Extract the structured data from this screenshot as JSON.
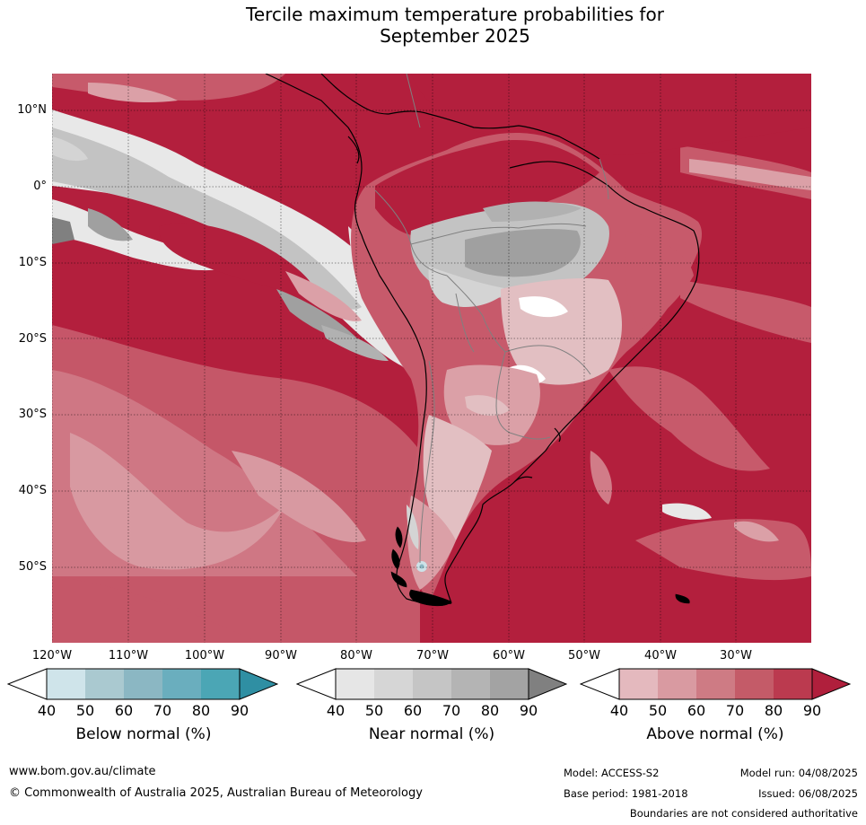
{
  "title": {
    "line1": "Tercile maximum temperature probabilities for",
    "line2": "September 2025"
  },
  "map": {
    "region": "South America",
    "lat_labels": [
      "10°N",
      "0°",
      "10°S",
      "20°S",
      "30°S",
      "40°S",
      "50°S"
    ],
    "lon_labels": [
      "120°W",
      "110°W",
      "100°W",
      "90°W",
      "80°W",
      "70°W",
      "60°W",
      "50°W",
      "40°W",
      "30°W"
    ],
    "colors": {
      "ocean_dominant": "#b31f3d",
      "above_90": "#b31f3d",
      "above_80": "#bd3b52",
      "above_70": "#c75a6b",
      "above_60": "#d17c88",
      "above_50": "#dba0a7",
      "above_40": "#e2bfc2",
      "near_40": "#e8e8e8",
      "near_50": "#d4d4d4",
      "near_60": "#c3c3c3",
      "near_70": "#b1b1b1",
      "near_80": "#a0a0a0",
      "near_90": "#808080",
      "below_50": "#cde2e8"
    }
  },
  "legends": [
    {
      "label": "Below normal (%)",
      "ticks": [
        "40",
        "50",
        "60",
        "70",
        "80",
        "90"
      ],
      "colors": [
        "#cfe4ea",
        "#aac9d0",
        "#8bb7c3",
        "#6aaebe",
        "#4ba6b5",
        "#2f8fa3"
      ]
    },
    {
      "label": "Near normal (%)",
      "ticks": [
        "40",
        "50",
        "60",
        "70",
        "80",
        "90"
      ],
      "colors": [
        "#e6e6e6",
        "#d6d6d6",
        "#c5c5c5",
        "#b4b4b4",
        "#a3a3a3",
        "#808080"
      ]
    },
    {
      "label": "Above normal (%)",
      "ticks": [
        "40",
        "50",
        "60",
        "70",
        "80",
        "90"
      ],
      "colors": [
        "#e4b9be",
        "#d99aa1",
        "#ce7b84",
        "#c45b68",
        "#bb3a4f",
        "#b01f3c"
      ]
    }
  ],
  "footer": {
    "website": "www.bom.gov.au/climate",
    "copyright": "© Commonwealth of Australia 2025, Australian Bureau of Meteorology",
    "model": "Model: ACCESS-S2",
    "model_run": "Model run: 04/08/2025",
    "base_period": "Base period: 1981-2018",
    "issued": "Issued: 06/08/2025",
    "disclaimer": "Boundaries are not considered authoritative"
  }
}
